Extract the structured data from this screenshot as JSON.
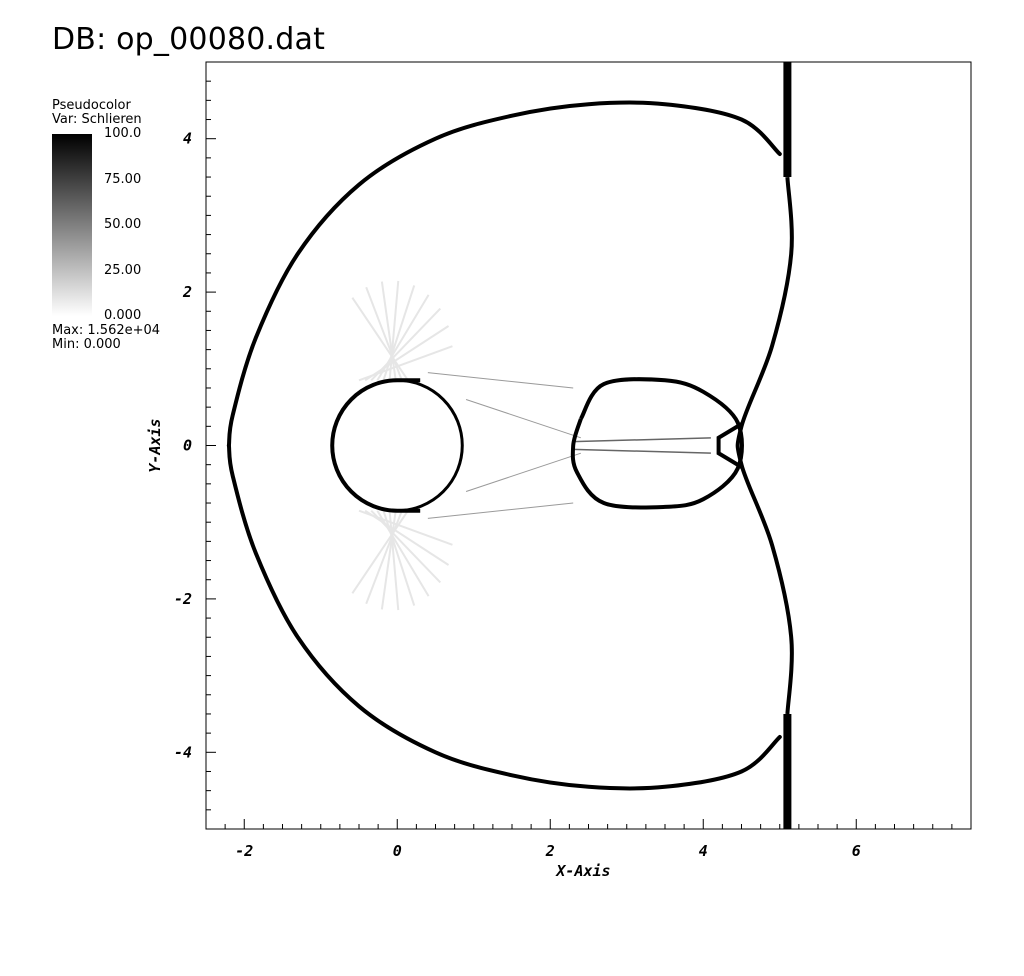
{
  "header": {
    "title": "DB: op_00080.dat"
  },
  "legend": {
    "plot_type": "Pseudocolor",
    "variable": "Var: Schlieren",
    "ticks": [
      "100.0",
      "75.00",
      "50.00",
      "25.00",
      "0.000"
    ],
    "max_label": "Max:  1.562e+04",
    "min_label": "Min:  0.000",
    "colormap": [
      "#000000",
      "#ffffff"
    ]
  },
  "chart_data": {
    "type": "heatmap",
    "title": "DB: op_00080.dat",
    "xlabel": "X-Axis",
    "ylabel": "Y-Axis",
    "xlim": [
      -2.5,
      7.5
    ],
    "ylim": [
      -5,
      5
    ],
    "x_ticks": [
      "-2",
      "0",
      "2",
      "4",
      "6"
    ],
    "y_ticks": [
      "-4",
      "-2",
      "0",
      "2",
      "4"
    ],
    "x_tick_values": [
      -2,
      0,
      2,
      4,
      6
    ],
    "y_tick_values": [
      -4,
      -2,
      0,
      2,
      4
    ],
    "variable": "Schlieren",
    "range": [
      0,
      100
    ],
    "data_max": 15620,
    "data_min": 0,
    "features": {
      "obstacle": {
        "center": [
          0,
          0
        ],
        "radius": 0.85,
        "cut_y": 0.9,
        "flat_end_x": 0.3
      },
      "bow_shock": {
        "upper": [
          [
            5.0,
            3.8
          ],
          [
            4.5,
            4.25
          ],
          [
            3.5,
            4.45
          ],
          [
            2.5,
            4.45
          ],
          [
            1.5,
            4.3
          ],
          [
            0.5,
            4.0
          ],
          [
            -0.5,
            3.4
          ],
          [
            -1.3,
            2.5
          ],
          [
            -1.85,
            1.4
          ],
          [
            -2.15,
            0.4
          ],
          [
            -2.2,
            0.0
          ]
        ],
        "lower": [
          [
            -2.2,
            0.0
          ],
          [
            -2.15,
            -0.4
          ],
          [
            -1.85,
            -1.4
          ],
          [
            -1.3,
            -2.5
          ],
          [
            -0.5,
            -3.4
          ],
          [
            0.5,
            -4.0
          ],
          [
            1.5,
            -4.3
          ],
          [
            2.5,
            -4.45
          ],
          [
            3.5,
            -4.45
          ],
          [
            4.5,
            -4.25
          ],
          [
            5.0,
            -3.8
          ]
        ]
      },
      "planar_shock_x": 5.1,
      "planar_shock_bulge": [
        [
          5.1,
          3.5
        ],
        [
          5.15,
          2.5
        ],
        [
          4.9,
          1.3
        ],
        [
          4.5,
          0.25
        ],
        [
          4.5,
          -0.25
        ],
        [
          4.9,
          -1.3
        ],
        [
          5.15,
          -2.5
        ],
        [
          5.1,
          -3.5
        ]
      ],
      "mach_stem": [
        [
          4.5,
          0.28
        ],
        [
          4.2,
          0.1
        ],
        [
          4.2,
          -0.1
        ],
        [
          4.5,
          -0.28
        ]
      ],
      "wake_loop": [
        [
          2.4,
          0.35
        ],
        [
          2.7,
          0.8
        ],
        [
          3.5,
          0.85
        ],
        [
          4.0,
          0.7
        ],
        [
          4.45,
          0.3
        ],
        [
          4.45,
          -0.3
        ],
        [
          4.0,
          -0.7
        ],
        [
          3.5,
          -0.8
        ],
        [
          2.7,
          -0.75
        ],
        [
          2.35,
          -0.35
        ],
        [
          2.3,
          0.0
        ],
        [
          2.4,
          0.35
        ]
      ]
    }
  }
}
